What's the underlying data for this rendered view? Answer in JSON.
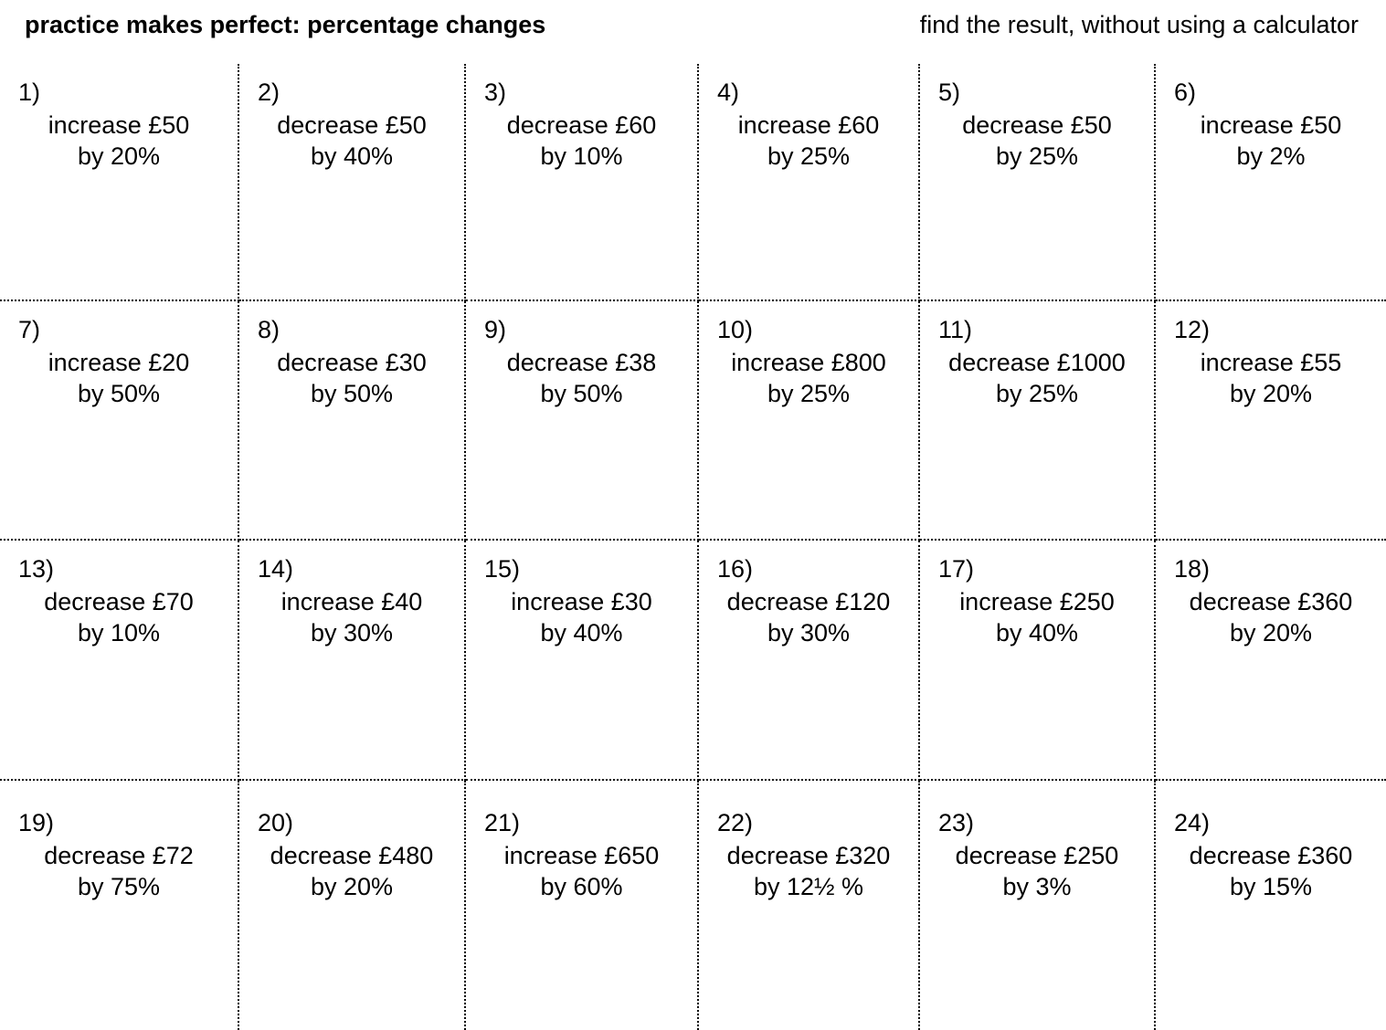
{
  "header": {
    "title": "practice makes perfect: percentage changes",
    "instruction": "find the result, without using a calculator"
  },
  "problems": [
    {
      "num": "1)",
      "line1": "increase £50",
      "line2": "by 20%"
    },
    {
      "num": "2)",
      "line1": "decrease £50",
      "line2": "by 40%"
    },
    {
      "num": "3)",
      "line1": "decrease £60",
      "line2": "by 10%"
    },
    {
      "num": "4)",
      "line1": "increase £60",
      "line2": "by 25%"
    },
    {
      "num": "5)",
      "line1": "decrease £50",
      "line2": "by 25%"
    },
    {
      "num": "6)",
      "line1": "increase £50",
      "line2": "by 2%"
    },
    {
      "num": "7)",
      "line1": "increase £20",
      "line2": "by 50%"
    },
    {
      "num": "8)",
      "line1": "decrease £30",
      "line2": "by 50%"
    },
    {
      "num": "9)",
      "line1": "decrease £38",
      "line2": "by 50%"
    },
    {
      "num": "10)",
      "line1": "increase £800",
      "line2": "by 25%"
    },
    {
      "num": "11)",
      "line1": "decrease £1000",
      "line2": "by 25%"
    },
    {
      "num": "12)",
      "line1": "increase £55",
      "line2": "by 20%"
    },
    {
      "num": "13)",
      "line1": "decrease £70",
      "line2": "by 10%"
    },
    {
      "num": "14)",
      "line1": "increase £40",
      "line2": "by 30%"
    },
    {
      "num": "15)",
      "line1": "increase £30",
      "line2": "by 40%"
    },
    {
      "num": "16)",
      "line1": "decrease £120",
      "line2": "by 30%"
    },
    {
      "num": "17)",
      "line1": "increase £250",
      "line2": "by 40%"
    },
    {
      "num": "18)",
      "line1": "decrease £360",
      "line2": "by 20%"
    },
    {
      "num": "19)",
      "line1": "decrease £72",
      "line2": "by 75%"
    },
    {
      "num": "20)",
      "line1": "decrease £480",
      "line2": "by 20%"
    },
    {
      "num": "21)",
      "line1": "increase £650",
      "line2": "by 60%"
    },
    {
      "num": "22)",
      "line1": "decrease £320",
      "line2": "by 12½ %"
    },
    {
      "num": "23)",
      "line1": "decrease £250",
      "line2": "by 3%"
    },
    {
      "num": "24)",
      "line1": "decrease £360",
      "line2": "by 15%"
    }
  ]
}
